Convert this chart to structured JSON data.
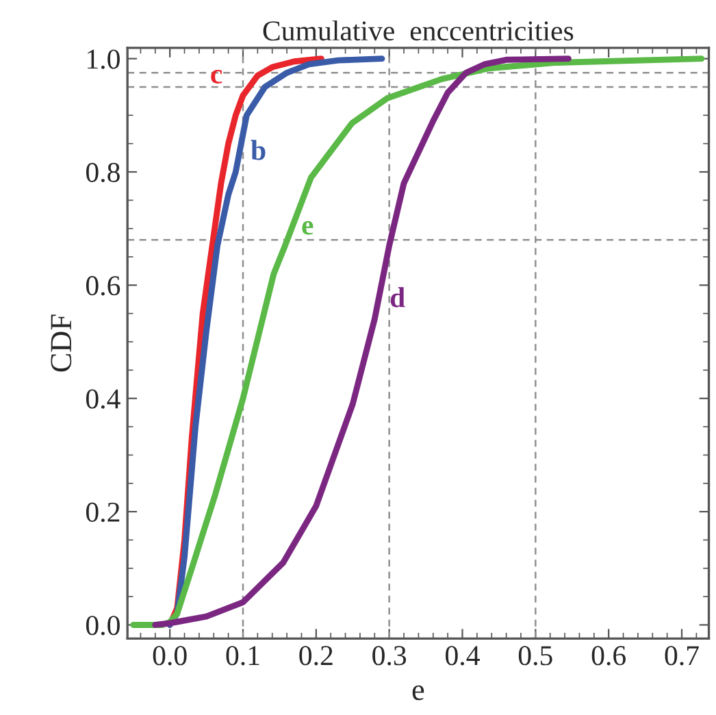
{
  "chart_data": {
    "type": "line",
    "title": "Cumulative  enccentricities",
    "xlabel": "e",
    "ylabel": "CDF",
    "xlim": [
      -0.058,
      0.737
    ],
    "ylim": [
      -0.024,
      1.019
    ],
    "xticks": [
      {
        "value": 0,
        "label": "0.0"
      },
      0.1,
      0.2,
      0.3,
      0.4,
      0.5,
      0.6,
      0.7
    ],
    "yticks": [
      {
        "value": 0,
        "label": "0.0"
      },
      0.2,
      0.4,
      0.6,
      0.8,
      {
        "value": 1,
        "label": "1.0"
      }
    ],
    "grid": false,
    "legend": false,
    "marker": "none",
    "line_style": "solid",
    "series": [
      {
        "color": "#e8262b",
        "x": [
          0.0,
          0.01,
          0.02,
          0.03,
          0.045,
          0.058,
          0.07,
          0.08,
          0.09,
          0.1,
          0.12,
          0.14,
          0.17,
          0.207
        ],
        "values": [
          0,
          0.03,
          0.15,
          0.33,
          0.55,
          0.67,
          0.78,
          0.85,
          0.9,
          0.935,
          0.97,
          0.985,
          0.995,
          1.0
        ]
      },
      {
        "color": "#3a5ba8",
        "x": [
          0.0,
          0.01,
          0.02,
          0.035,
          0.05,
          0.065,
          0.08,
          0.09,
          0.105,
          0.13,
          0.16,
          0.19,
          0.23,
          0.29
        ],
        "values": [
          0,
          0.02,
          0.12,
          0.35,
          0.52,
          0.67,
          0.76,
          0.8,
          0.9,
          0.95,
          0.975,
          0.99,
          0.997,
          1.0
        ]
      },
      {
        "color": "#5ab947",
        "x": [
          -0.05,
          -0.01,
          0.0,
          0.01,
          0.03,
          0.062,
          0.1,
          0.142,
          0.157,
          0.193,
          0.249,
          0.297,
          0.372,
          0.436,
          0.529,
          0.727
        ],
        "values": [
          0,
          0,
          0.005,
          0.02,
          0.1,
          0.23,
          0.4,
          0.62,
          0.668,
          0.79,
          0.886,
          0.93,
          0.964,
          0.983,
          0.993,
          1.0
        ]
      },
      {
        "color": "#7b2782",
        "x": [
          -0.02,
          0.0,
          0.05,
          0.1,
          0.155,
          0.2,
          0.25,
          0.28,
          0.3,
          0.32,
          0.36,
          0.38,
          0.405,
          0.43,
          0.46,
          0.545
        ],
        "values": [
          0,
          0.003,
          0.015,
          0.04,
          0.11,
          0.21,
          0.39,
          0.54,
          0.67,
          0.78,
          0.89,
          0.94,
          0.975,
          0.99,
          0.998,
          1.0
        ]
      }
    ],
    "annotations": [
      {
        "text": "c",
        "x": 0.1,
        "y": 0.935
      },
      {
        "text": "b",
        "x": 0.09,
        "y": 0.8
      },
      {
        "text": "e",
        "x": 0.157,
        "y": 0.668
      },
      {
        "text": "d",
        "x": 0.28,
        "y": 0.54
      }
    ],
    "ref_lines": [
      {
        "axis": "x",
        "value": 0.1,
        "color": "#909090",
        "line_style": "dashed"
      },
      {
        "axis": "x",
        "value": 0.3,
        "color": "#909090",
        "line_style": "dashed"
      },
      {
        "axis": "x",
        "value": 0.5,
        "color": "#909090",
        "line_style": "dashed"
      },
      {
        "axis": "y",
        "value": 0.68,
        "color": "#909090",
        "line_style": "dashed"
      },
      {
        "axis": "y",
        "value": 0.95,
        "color": "#909090",
        "line_style": "dashed"
      },
      {
        "axis": "y",
        "value": 0.975,
        "color": "#909090",
        "line_style": "dashed"
      }
    ]
  }
}
